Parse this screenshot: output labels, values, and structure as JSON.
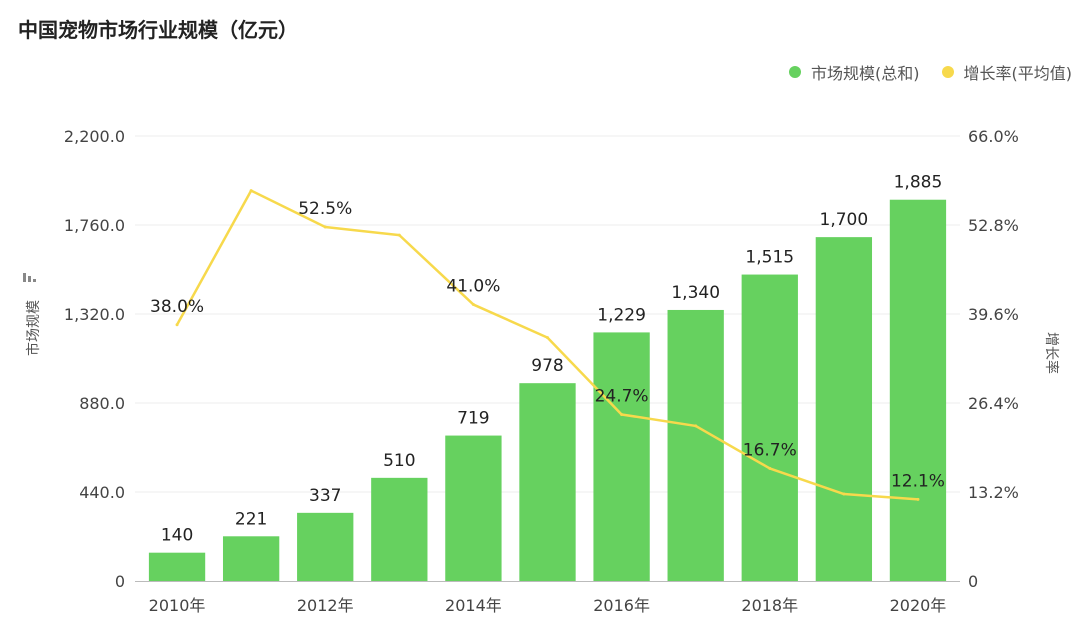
{
  "chart_data": {
    "type": "bar",
    "title": "中国宠物市场行业规模（亿元）",
    "categories": [
      "2010年",
      "2011年",
      "2012年",
      "2013年",
      "2014年",
      "2015年",
      "2016年",
      "2017年",
      "2018年",
      "2019年",
      "2020年"
    ],
    "x_tick_labels": [
      "2010年",
      "2012年",
      "2014年",
      "2016年",
      "2018年",
      "2020年"
    ],
    "series": [
      {
        "name": "市场规模(总和)",
        "type": "bar",
        "axis": "left",
        "color": "#66d15f",
        "values": [
          140,
          221,
          337,
          510,
          719,
          978,
          1229,
          1340,
          1515,
          1700,
          1885
        ],
        "labels": [
          "140",
          "221",
          "337",
          "510",
          "719",
          "978",
          "1,229",
          "1,340",
          "1,515",
          "1,700",
          "1,885"
        ]
      },
      {
        "name": "增长率(平均值)",
        "type": "line",
        "axis": "right",
        "color": "#f7d94c",
        "values": [
          38.0,
          57.9,
          52.5,
          51.3,
          41.0,
          36.1,
          24.7,
          23.0,
          16.7,
          12.9,
          12.1
        ],
        "labels": [
          "38.0%",
          "",
          "52.5%",
          "",
          "41.0%",
          "",
          "24.7%",
          "",
          "16.7%",
          "",
          "12.1%"
        ]
      }
    ],
    "ylabel": "市场规模",
    "ylabel_right": "增长率",
    "ylim": [
      0,
      2200
    ],
    "ylim_right": [
      0,
      66
    ],
    "y_ticks": [
      "0",
      "440.0",
      "880.0",
      "1,320.0",
      "1,760.0",
      "2,200.0"
    ],
    "y_ticks_right": [
      "0",
      "13.2%",
      "26.4%",
      "39.6%",
      "52.8%",
      "66.0%"
    ],
    "legend_position": "top-right",
    "grid": true
  }
}
